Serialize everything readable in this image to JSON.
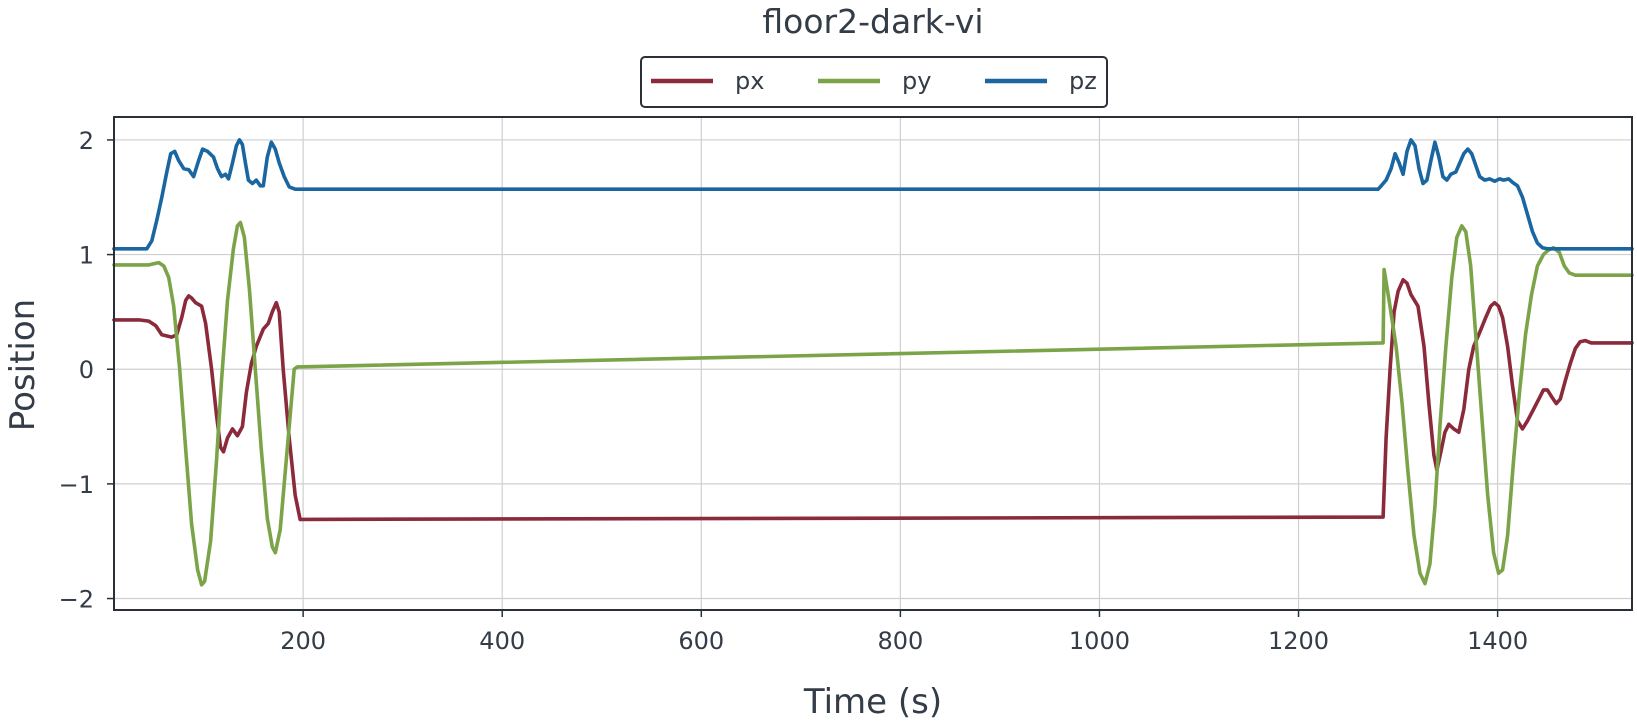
{
  "chart_data": {
    "type": "line",
    "title": "floor2-dark-vi",
    "xlabel": "Time (s)",
    "ylabel": "Position",
    "xlim": [
      10,
      1535
    ],
    "ylim": [
      -2.1,
      2.2
    ],
    "x_ticks": [
      200,
      400,
      600,
      800,
      1000,
      1200,
      1400
    ],
    "x_tick_labels": [
      "200",
      "400",
      "600",
      "800",
      "1000",
      "1200",
      "1400"
    ],
    "y_ticks": [
      2,
      1,
      0,
      -1,
      -2
    ],
    "y_tick_labels": [
      "2",
      "1",
      "0",
      "−1",
      "−2"
    ],
    "grid": true,
    "legend_position": "top-center",
    "series": [
      {
        "name": "px",
        "color": "#8b2a3a",
        "points": [
          [
            10,
            0.43
          ],
          [
            35,
            0.43
          ],
          [
            45,
            0.42
          ],
          [
            52,
            0.38
          ],
          [
            58,
            0.3
          ],
          [
            68,
            0.28
          ],
          [
            73,
            0.3
          ],
          [
            78,
            0.45
          ],
          [
            82,
            0.6
          ],
          [
            85,
            0.64
          ],
          [
            88,
            0.62
          ],
          [
            92,
            0.58
          ],
          [
            98,
            0.55
          ],
          [
            102,
            0.4
          ],
          [
            108,
            0.0
          ],
          [
            113,
            -0.4
          ],
          [
            117,
            -0.68
          ],
          [
            120,
            -0.72
          ],
          [
            124,
            -0.6
          ],
          [
            129,
            -0.52
          ],
          [
            134,
            -0.58
          ],
          [
            139,
            -0.5
          ],
          [
            143,
            -0.2
          ],
          [
            148,
            0.05
          ],
          [
            153,
            0.2
          ],
          [
            160,
            0.35
          ],
          [
            165,
            0.4
          ],
          [
            169,
            0.5
          ],
          [
            173,
            0.58
          ],
          [
            176,
            0.5
          ],
          [
            180,
            0.0
          ],
          [
            186,
            -0.6
          ],
          [
            192,
            -1.1
          ],
          [
            197,
            -1.31
          ],
          [
            1285,
            -1.29
          ],
          [
            1288,
            -0.6
          ],
          [
            1292,
            0.0
          ],
          [
            1296,
            0.5
          ],
          [
            1300,
            0.68
          ],
          [
            1305,
            0.78
          ],
          [
            1309,
            0.75
          ],
          [
            1313,
            0.65
          ],
          [
            1320,
            0.55
          ],
          [
            1326,
            0.2
          ],
          [
            1331,
            -0.3
          ],
          [
            1336,
            -0.75
          ],
          [
            1339,
            -0.88
          ],
          [
            1343,
            -0.72
          ],
          [
            1347,
            -0.55
          ],
          [
            1351,
            -0.48
          ],
          [
            1356,
            -0.52
          ],
          [
            1361,
            -0.55
          ],
          [
            1366,
            -0.35
          ],
          [
            1371,
            0.0
          ],
          [
            1376,
            0.2
          ],
          [
            1381,
            0.3
          ],
          [
            1388,
            0.45
          ],
          [
            1393,
            0.55
          ],
          [
            1397,
            0.58
          ],
          [
            1401,
            0.55
          ],
          [
            1405,
            0.45
          ],
          [
            1410,
            0.2
          ],
          [
            1415,
            -0.15
          ],
          [
            1420,
            -0.45
          ],
          [
            1425,
            -0.52
          ],
          [
            1430,
            -0.45
          ],
          [
            1436,
            -0.35
          ],
          [
            1442,
            -0.25
          ],
          [
            1446,
            -0.18
          ],
          [
            1450,
            -0.18
          ],
          [
            1455,
            -0.25
          ],
          [
            1459,
            -0.3
          ],
          [
            1463,
            -0.26
          ],
          [
            1468,
            -0.1
          ],
          [
            1473,
            0.05
          ],
          [
            1478,
            0.18
          ],
          [
            1483,
            0.24
          ],
          [
            1488,
            0.25
          ],
          [
            1494,
            0.23
          ],
          [
            1535,
            0.23
          ]
        ]
      },
      {
        "name": "py",
        "color": "#7ba449",
        "points": [
          [
            10,
            0.91
          ],
          [
            45,
            0.91
          ],
          [
            55,
            0.93
          ],
          [
            60,
            0.9
          ],
          [
            65,
            0.8
          ],
          [
            70,
            0.55
          ],
          [
            76,
            0.0
          ],
          [
            82,
            -0.7
          ],
          [
            88,
            -1.35
          ],
          [
            94,
            -1.75
          ],
          [
            98,
            -1.88
          ],
          [
            101,
            -1.85
          ],
          [
            107,
            -1.5
          ],
          [
            113,
            -0.8
          ],
          [
            118,
            -0.1
          ],
          [
            124,
            0.6
          ],
          [
            130,
            1.05
          ],
          [
            134,
            1.25
          ],
          [
            137,
            1.28
          ],
          [
            141,
            1.15
          ],
          [
            146,
            0.7
          ],
          [
            152,
            0.0
          ],
          [
            158,
            -0.7
          ],
          [
            164,
            -1.3
          ],
          [
            169,
            -1.55
          ],
          [
            172,
            -1.6
          ],
          [
            177,
            -1.4
          ],
          [
            182,
            -0.9
          ],
          [
            187,
            -0.4
          ],
          [
            191,
            0.0
          ],
          [
            194,
            0.02
          ],
          [
            1285,
            0.23
          ],
          [
            1286,
            0.87
          ],
          [
            1291,
            0.6
          ],
          [
            1298,
            0.2
          ],
          [
            1304,
            -0.3
          ],
          [
            1310,
            -0.9
          ],
          [
            1316,
            -1.45
          ],
          [
            1322,
            -1.78
          ],
          [
            1327,
            -1.87
          ],
          [
            1332,
            -1.7
          ],
          [
            1337,
            -1.2
          ],
          [
            1342,
            -0.5
          ],
          [
            1348,
            0.2
          ],
          [
            1354,
            0.8
          ],
          [
            1359,
            1.15
          ],
          [
            1364,
            1.25
          ],
          [
            1368,
            1.2
          ],
          [
            1373,
            0.9
          ],
          [
            1378,
            0.3
          ],
          [
            1384,
            -0.4
          ],
          [
            1390,
            -1.1
          ],
          [
            1396,
            -1.6
          ],
          [
            1401,
            -1.78
          ],
          [
            1405,
            -1.75
          ],
          [
            1410,
            -1.45
          ],
          [
            1416,
            -0.8
          ],
          [
            1422,
            -0.2
          ],
          [
            1428,
            0.3
          ],
          [
            1434,
            0.65
          ],
          [
            1440,
            0.9
          ],
          [
            1446,
            1.0
          ],
          [
            1451,
            1.04
          ],
          [
            1456,
            1.06
          ],
          [
            1462,
            1.02
          ],
          [
            1467,
            0.9
          ],
          [
            1472,
            0.84
          ],
          [
            1478,
            0.82
          ],
          [
            1535,
            0.82
          ]
        ]
      },
      {
        "name": "pz",
        "color": "#1a66a0",
        "points": [
          [
            10,
            1.05
          ],
          [
            43,
            1.05
          ],
          [
            48,
            1.12
          ],
          [
            53,
            1.3
          ],
          [
            58,
            1.5
          ],
          [
            63,
            1.72
          ],
          [
            67,
            1.88
          ],
          [
            71,
            1.9
          ],
          [
            75,
            1.82
          ],
          [
            80,
            1.75
          ],
          [
            85,
            1.74
          ],
          [
            90,
            1.68
          ],
          [
            95,
            1.82
          ],
          [
            99,
            1.92
          ],
          [
            104,
            1.9
          ],
          [
            110,
            1.85
          ],
          [
            114,
            1.75
          ],
          [
            118,
            1.68
          ],
          [
            122,
            1.7
          ],
          [
            125,
            1.66
          ],
          [
            129,
            1.8
          ],
          [
            133,
            1.95
          ],
          [
            136,
            2.0
          ],
          [
            139,
            1.96
          ],
          [
            142,
            1.8
          ],
          [
            145,
            1.65
          ],
          [
            149,
            1.62
          ],
          [
            153,
            1.65
          ],
          [
            157,
            1.6
          ],
          [
            160,
            1.6
          ],
          [
            164,
            1.85
          ],
          [
            168,
            1.98
          ],
          [
            172,
            1.92
          ],
          [
            176,
            1.8
          ],
          [
            181,
            1.68
          ],
          [
            186,
            1.59
          ],
          [
            192,
            1.57
          ],
          [
            1280,
            1.57
          ],
          [
            1283,
            1.6
          ],
          [
            1288,
            1.65
          ],
          [
            1293,
            1.75
          ],
          [
            1297,
            1.88
          ],
          [
            1301,
            1.8
          ],
          [
            1305,
            1.7
          ],
          [
            1309,
            1.9
          ],
          [
            1313,
            2.0
          ],
          [
            1317,
            1.95
          ],
          [
            1321,
            1.75
          ],
          [
            1325,
            1.62
          ],
          [
            1329,
            1.65
          ],
          [
            1333,
            1.82
          ],
          [
            1337,
            1.98
          ],
          [
            1341,
            1.85
          ],
          [
            1345,
            1.68
          ],
          [
            1349,
            1.65
          ],
          [
            1353,
            1.7
          ],
          [
            1358,
            1.72
          ],
          [
            1362,
            1.8
          ],
          [
            1366,
            1.88
          ],
          [
            1370,
            1.92
          ],
          [
            1374,
            1.88
          ],
          [
            1378,
            1.78
          ],
          [
            1382,
            1.68
          ],
          [
            1387,
            1.65
          ],
          [
            1392,
            1.66
          ],
          [
            1397,
            1.64
          ],
          [
            1402,
            1.66
          ],
          [
            1406,
            1.65
          ],
          [
            1411,
            1.66
          ],
          [
            1415,
            1.63
          ],
          [
            1420,
            1.6
          ],
          [
            1425,
            1.5
          ],
          [
            1430,
            1.35
          ],
          [
            1435,
            1.2
          ],
          [
            1440,
            1.1
          ],
          [
            1445,
            1.06
          ],
          [
            1450,
            1.05
          ],
          [
            1535,
            1.05
          ]
        ]
      }
    ]
  }
}
